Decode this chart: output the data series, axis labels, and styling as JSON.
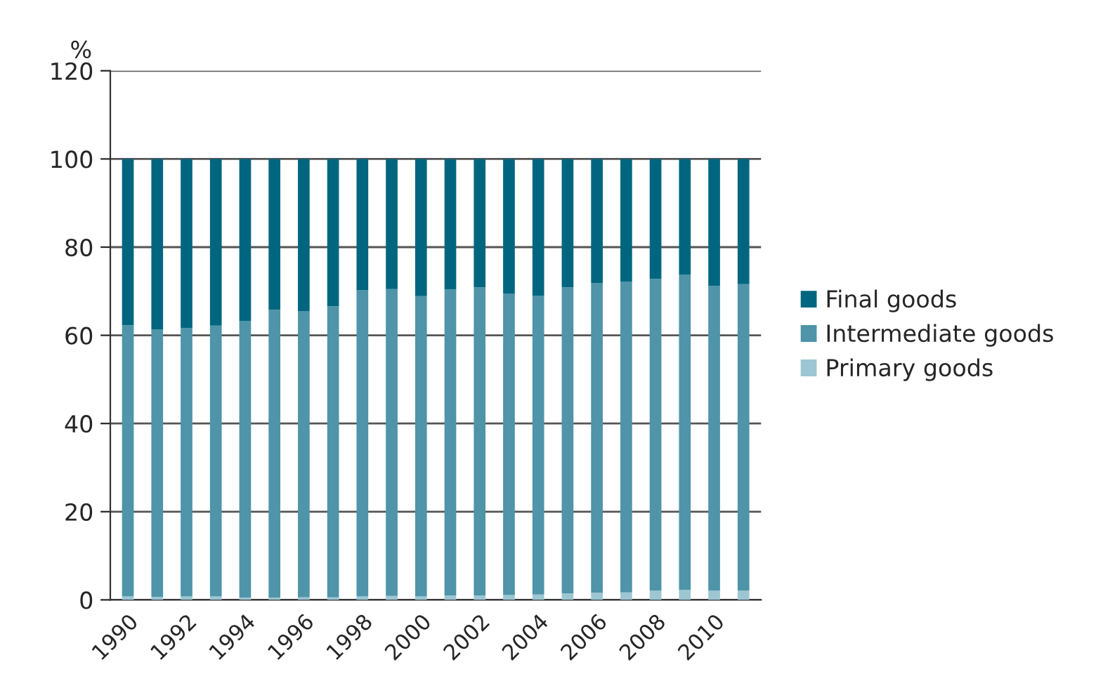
{
  "chart_data": {
    "type": "bar",
    "stacked": true,
    "ylabel": "%",
    "categories": [
      "1990",
      null,
      "1992",
      null,
      "1994",
      null,
      "1996",
      null,
      "1998",
      null,
      "2000",
      null,
      "2002",
      null,
      "2004",
      null,
      "2006",
      null,
      "2008",
      null,
      "2010",
      null
    ],
    "series": [
      {
        "name": "Primary goods",
        "color": "#9cc6d2",
        "values": [
          0.8,
          0.7,
          0.8,
          0.8,
          0.5,
          0.5,
          0.6,
          0.6,
          0.8,
          0.9,
          0.8,
          1.0,
          1.0,
          1.1,
          1.2,
          1.5,
          1.6,
          1.7,
          2.1,
          2.3,
          2.1,
          2.1
        ]
      },
      {
        "name": "Intermediate goods",
        "color": "#4f94a8",
        "values": [
          61.5,
          60.6,
          60.8,
          61.4,
          62.7,
          65.3,
          64.9,
          66.0,
          69.4,
          69.6,
          68.1,
          69.4,
          69.9,
          68.4,
          67.8,
          69.4,
          70.2,
          70.4,
          70.7,
          71.5,
          69.1,
          69.5
        ]
      },
      {
        "name": "Final goods",
        "color": "#00667f",
        "values": [
          37.7,
          38.7,
          38.4,
          37.8,
          36.8,
          34.2,
          34.5,
          33.4,
          29.8,
          29.5,
          31.1,
          29.6,
          29.1,
          30.5,
          31.0,
          29.1,
          28.2,
          27.9,
          27.2,
          26.2,
          28.8,
          28.4
        ]
      }
    ],
    "ylim": [
      0,
      120
    ],
    "yticks": [
      0,
      20,
      40,
      60,
      80,
      100,
      120
    ],
    "grid": "y",
    "legend": "right"
  }
}
